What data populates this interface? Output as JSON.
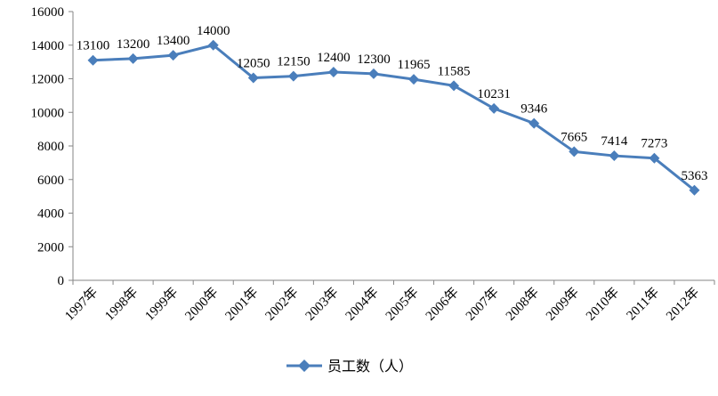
{
  "chart_data": {
    "type": "line",
    "title": "",
    "xlabel": "",
    "ylabel": "",
    "categories": [
      "1997年",
      "1998年",
      "1999年",
      "2000年",
      "2001年",
      "2002年",
      "2003年",
      "2004年",
      "2005年",
      "2006年",
      "2007年",
      "2008年",
      "2009年",
      "2010年",
      "2011年",
      "2012年"
    ],
    "series": [
      {
        "name": "员工数（人）",
        "values": [
          13100,
          13200,
          13400,
          14000,
          12050,
          12150,
          12400,
          12300,
          11965,
          11585,
          10231,
          9346,
          7665,
          7414,
          7273,
          5363
        ],
        "color": "#4a7ebb",
        "marker": "diamond"
      }
    ],
    "ylim": [
      0,
      16000
    ],
    "yticks": [
      "0",
      "2000",
      "4000",
      "6000",
      "8000",
      "10000",
      "12000",
      "14000",
      "16000"
    ],
    "data_labels": [
      "13100",
      "13200",
      "13400",
      "14000",
      "12050",
      "12150",
      "12400",
      "12300",
      "11965",
      "11585",
      "10231",
      "9346",
      "7665",
      "7414",
      "7273",
      "5363"
    ],
    "grid": false,
    "legend": "bottom"
  }
}
